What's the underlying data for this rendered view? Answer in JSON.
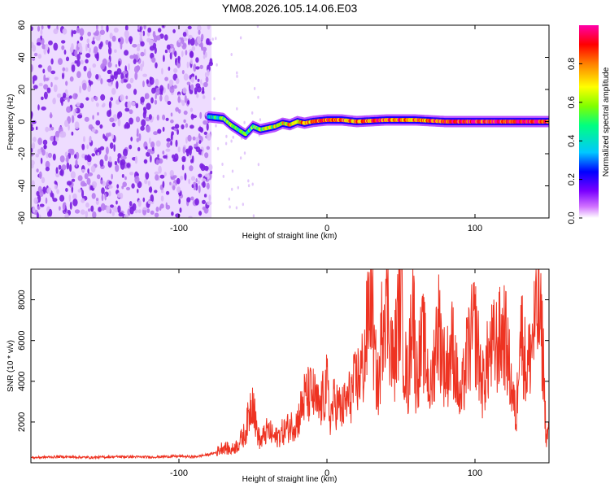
{
  "title": "YM08.2026.105.14.06.E03",
  "colors": {
    "noise_purple": "#7a1fe0",
    "snr_line": "#ee3322",
    "colormap": [
      "#ffffff",
      "#d070ff",
      "#7a00ff",
      "#0000ff",
      "#00c8ff",
      "#00ff80",
      "#80ff00",
      "#ffff00",
      "#ff8000",
      "#ff0000",
      "#ff00aa"
    ]
  },
  "chart_data": [
    {
      "type": "heatmap",
      "name": "spectrogram",
      "title": "",
      "xlabel": "Height of straight line (km)",
      "ylabel": "Frequency (Hz)",
      "xlim": [
        -200,
        150
      ],
      "ylim": [
        -60,
        60
      ],
      "x_ticks": [
        -100,
        0,
        100
      ],
      "y_ticks": [
        -60,
        -40,
        -20,
        0,
        20,
        40,
        60
      ],
      "noise_region_x": [
        -200,
        -78
      ],
      "ridge": {
        "x": [
          -80,
          -70,
          -65,
          -60,
          -55,
          -50,
          -45,
          -40,
          -35,
          -30,
          -25,
          -20,
          -15,
          -10,
          0,
          10,
          20,
          40,
          60,
          80,
          100,
          120,
          140,
          150
        ],
        "freq_hz": [
          3,
          2,
          -2,
          -5,
          -8,
          -3,
          -5,
          -4,
          -3,
          -1,
          -2,
          0,
          -1,
          0,
          1,
          1,
          0,
          1,
          1,
          0,
          0,
          0,
          0,
          0
        ],
        "amplitude": [
          0.4,
          0.5,
          0.55,
          0.5,
          0.5,
          0.55,
          0.6,
          0.6,
          0.65,
          0.65,
          0.7,
          0.75,
          0.75,
          0.8,
          0.85,
          0.8,
          0.8,
          0.85,
          0.8,
          0.85,
          0.9,
          0.9,
          0.95,
          0.9
        ]
      },
      "colorbar": {
        "label": "Normalized spectral amplitude",
        "range": [
          0,
          1
        ],
        "ticks": [
          "0.0",
          "0.2",
          "0.4",
          "0.6",
          "0.8"
        ]
      }
    },
    {
      "type": "line",
      "name": "snr",
      "title": "",
      "xlabel": "Height of straight line (km)",
      "ylabel": "SNR (10 * v/v)",
      "xlim": [
        -200,
        150
      ],
      "ylim": [
        0,
        9500
      ],
      "x_ticks": [
        -100,
        0,
        100
      ],
      "y_ticks": [
        2000,
        4000,
        6000,
        8000
      ],
      "series": [
        {
          "name": "SNR",
          "x": [
            -200,
            -180,
            -160,
            -140,
            -120,
            -100,
            -90,
            -80,
            -75,
            -70,
            -65,
            -60,
            -55,
            -50,
            -48,
            -45,
            -42,
            -40,
            -35,
            -30,
            -25,
            -20,
            -15,
            -10,
            -5,
            0,
            2,
            5,
            10,
            15,
            20,
            25,
            28,
            30,
            32,
            35,
            38,
            40,
            45,
            48,
            50,
            52,
            55,
            58,
            60,
            65,
            70,
            75,
            80,
            85,
            90,
            95,
            100,
            105,
            110,
            115,
            120,
            125,
            128,
            130,
            135,
            140,
            143,
            146,
            148,
            150
          ],
          "values": [
            250,
            300,
            260,
            300,
            280,
            320,
            290,
            400,
            500,
            800,
            600,
            900,
            1500,
            3400,
            1800,
            1000,
            1400,
            1600,
            1200,
            1500,
            1800,
            2000,
            3200,
            3400,
            2600,
            3800,
            2200,
            3000,
            2600,
            3200,
            4000,
            4800,
            7200,
            9400,
            5000,
            3600,
            7800,
            8600,
            4600,
            7000,
            9000,
            5200,
            3800,
            8800,
            4200,
            6000,
            3400,
            7000,
            4400,
            5800,
            2800,
            5400,
            6600,
            3800,
            5400,
            5800,
            6400,
            3600,
            2000,
            7200,
            4400,
            6600,
            7600,
            5400,
            1200,
            1600
          ]
        }
      ]
    }
  ]
}
